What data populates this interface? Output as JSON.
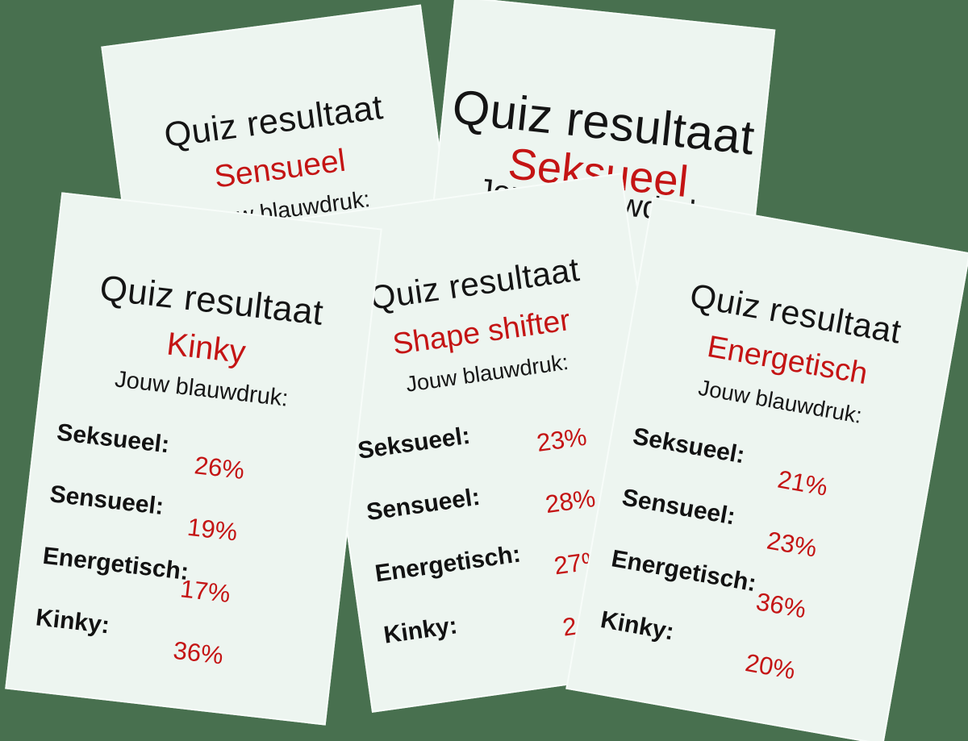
{
  "colors": {
    "background": "#48704f",
    "card": "#edf5f0",
    "accent_red": "#c41414",
    "text": "#121212"
  },
  "cards": [
    {
      "id": "sensueel",
      "title": "Quiz resultaat",
      "result": "Sensueel",
      "subtitle": "Jouw blauwdruk:",
      "rows": []
    },
    {
      "id": "seksueel",
      "title": "Quiz resultaat",
      "result": "Seksueel",
      "subtitle": "Jouw blauwdruk:",
      "rows": []
    },
    {
      "id": "shape",
      "title": "Quiz resultaat",
      "result": "Shape shifter",
      "subtitle": "Jouw blauwdruk:",
      "rows": [
        {
          "label": "Seksueel:",
          "value": "23%"
        },
        {
          "label": "Sensueel:",
          "value": "28%"
        },
        {
          "label": "Energetisch:",
          "value": "27%"
        },
        {
          "label": "Kinky:",
          "value": "2"
        }
      ]
    },
    {
      "id": "kinky",
      "title": "Quiz resultaat",
      "result": "Kinky",
      "subtitle": "Jouw blauwdruk:",
      "rows": [
        {
          "label": "Seksueel:",
          "value": "26%"
        },
        {
          "label": "Sensueel:",
          "value": "19%"
        },
        {
          "label": "Energetisch:",
          "value": "17%"
        },
        {
          "label": "Kinky:",
          "value": "36%"
        }
      ]
    },
    {
      "id": "energetisch",
      "title": "Quiz resultaat",
      "result": "Energetisch",
      "subtitle": "Jouw blauwdruk:",
      "rows": [
        {
          "label": "Seksueel:",
          "value": "21%"
        },
        {
          "label": "Sensueel:",
          "value": "23%"
        },
        {
          "label": "Energetisch:",
          "value": "36%"
        },
        {
          "label": "Kinky:",
          "value": "20%"
        }
      ]
    }
  ]
}
